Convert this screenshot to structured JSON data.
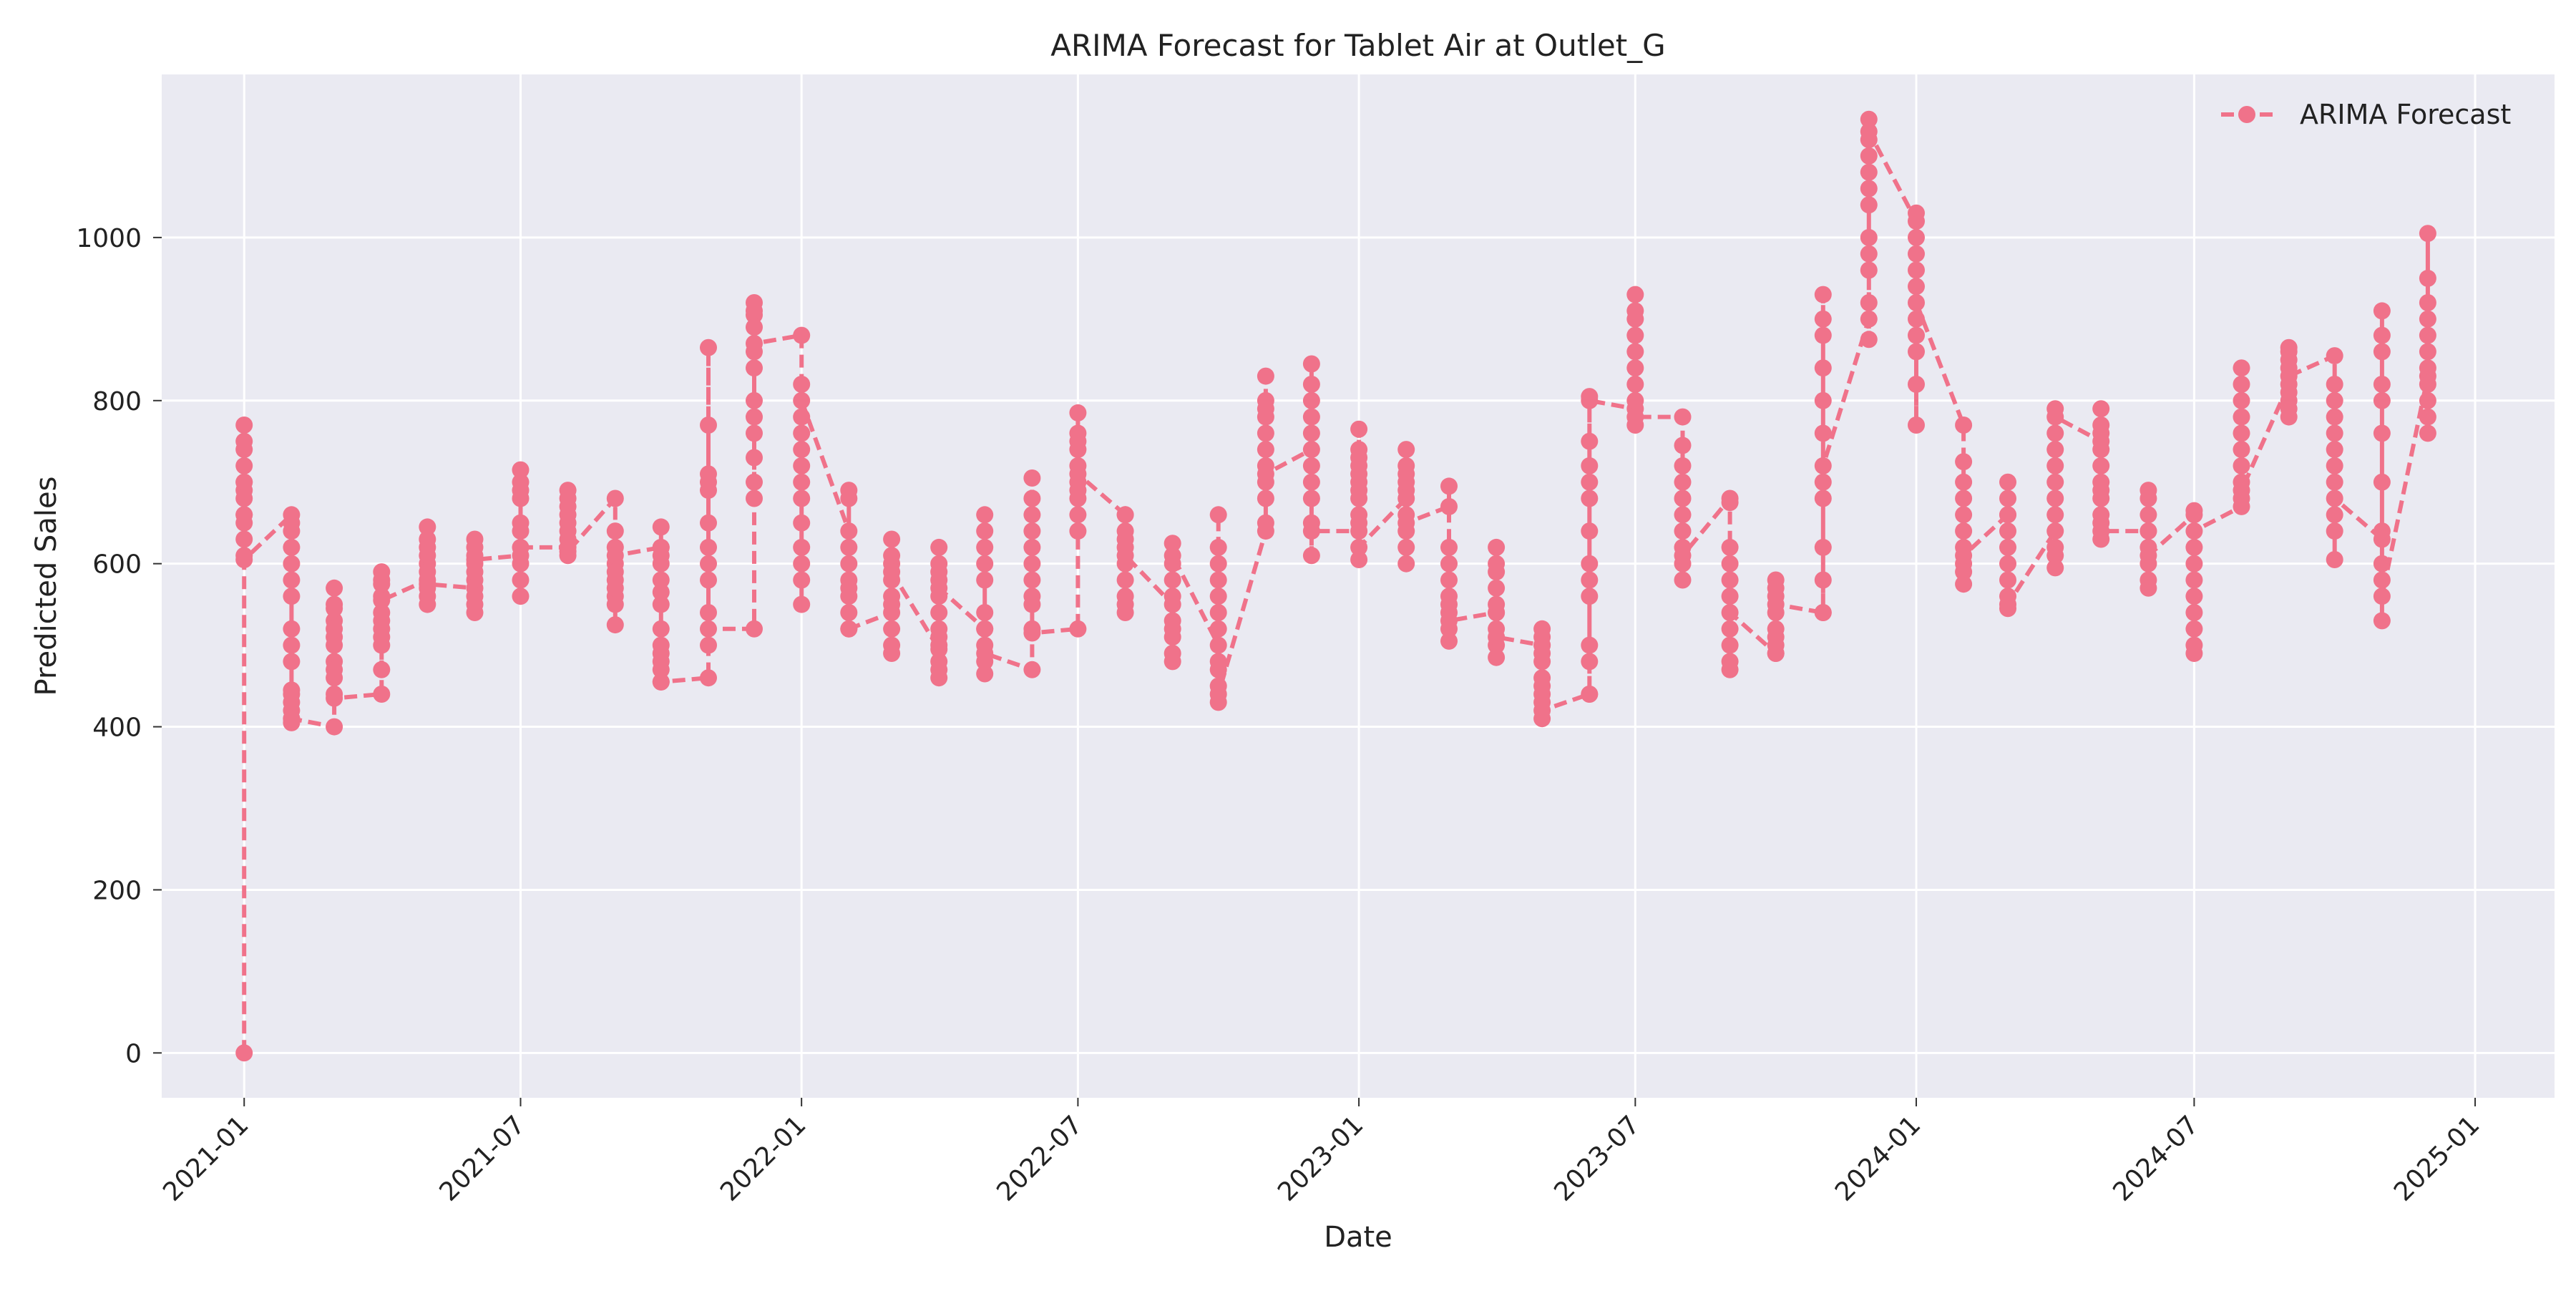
{
  "chart_data": {
    "type": "line",
    "title": "ARIMA Forecast for Tablet Air at Outlet_G",
    "xlabel": "Date",
    "ylabel": "Predicted Sales",
    "x_tick_labels": [
      "2021-01",
      "2021-07",
      "2022-01",
      "2022-07",
      "2023-01",
      "2023-07",
      "2024-01",
      "2024-07",
      "2025-01"
    ],
    "y_ticks": [
      0,
      200,
      400,
      600,
      800,
      1000
    ],
    "xlim": [
      "2020-11-08",
      "2025-02-22"
    ],
    "ylim": [
      -55,
      1200
    ],
    "grid": true,
    "legend_position": "top-right",
    "series": [
      {
        "name": "ARIMA Forecast",
        "color": "#f0728a",
        "marker": "circle",
        "line_style": "dashed",
        "points": [
          {
            "date": "2021-01-01",
            "y": [
              0,
              660,
              770,
              610,
              750,
              700,
              680,
              630,
              740,
              690,
              720,
              660,
              700,
              650,
              605
            ]
          },
          {
            "date": "2021-02-01",
            "y": [
              660,
              405,
              500,
              650,
              420,
              560,
              640,
              480,
              430,
              600,
              520,
              410,
              620,
              445,
              580,
              440,
              410
            ]
          },
          {
            "date": "2021-03-01",
            "y": [
              400,
              570,
              460,
              530,
              440,
              510,
              550,
              480,
              500,
              470,
              545,
              520,
              435
            ]
          },
          {
            "date": "2021-04-01",
            "y": [
              440,
              580,
              470,
              560,
              590,
              500,
              540,
              520,
              575,
              530,
              510,
              555
            ]
          },
          {
            "date": "2021-05-01",
            "y": [
              580,
              550,
              645,
              600,
              620,
              570,
              590,
              610,
              630,
              560,
              575
            ]
          },
          {
            "date": "2021-06-01",
            "y": [
              570,
              540,
              630,
              600,
              610,
              580,
              560,
              620,
              590,
              550,
              605
            ]
          },
          {
            "date": "2021-07-01",
            "y": [
              610,
              560,
              715,
              650,
              700,
              680,
              600,
              690,
              640,
              580,
              620
            ]
          },
          {
            "date": "2021-08-01",
            "y": [
              620,
              690,
              610,
              680,
              650,
              670,
              640,
              660,
              630,
              615
            ]
          },
          {
            "date": "2021-09-01",
            "y": [
              680,
              525,
              640,
              560,
              620,
              600,
              590,
              580,
              550,
              570,
              610
            ]
          },
          {
            "date": "2021-10-01",
            "y": [
              620,
              455,
              645,
              500,
              600,
              470,
              550,
              580,
              520,
              490,
              610,
              480,
              565,
              620,
              455
            ]
          },
          {
            "date": "2021-11-01",
            "y": [
              460,
              500,
              865,
              540,
              770,
              600,
              700,
              650,
              620,
              690,
              580,
              710,
              520
            ]
          },
          {
            "date": "2021-12-01",
            "y": [
              520,
              905,
              680,
              920,
              800,
              860,
              730,
              890,
              760,
              700,
              840,
              910,
              780,
              870
            ]
          },
          {
            "date": "2022-01-01",
            "y": [
              880,
              550,
              820,
              600,
              780,
              700,
              760,
              650,
              720,
              680,
              740,
              580,
              620,
              800
            ]
          },
          {
            "date": "2022-02-01",
            "y": [
              640,
              690,
              520,
              600,
              560,
              680,
              540,
              620,
              580,
              570,
              520
            ]
          },
          {
            "date": "2022-03-01",
            "y": [
              540,
              630,
              490,
              600,
              520,
              580,
              560,
              610,
              550,
              500,
              590
            ]
          },
          {
            "date": "2022-04-01",
            "y": [
              495,
              620,
              460,
              600,
              500,
              580,
              540,
              560,
              480,
              520,
              590,
              510,
              470,
              570
            ]
          },
          {
            "date": "2022-05-01",
            "y": [
              520,
              660,
              465,
              600,
              500,
              640,
              540,
              580,
              520,
              480,
              620,
              490
            ]
          },
          {
            "date": "2022-06-01",
            "y": [
              470,
              705,
              520,
              660,
              600,
              640,
              560,
              620,
              580,
              550,
              680,
              515
            ]
          },
          {
            "date": "2022-07-01",
            "y": [
              520,
              785,
              640,
              760,
              700,
              740,
              680,
              720,
              660,
              750,
              690,
              710
            ]
          },
          {
            "date": "2022-08-01",
            "y": [
              660,
              660,
              540,
              640,
              600,
              620,
              580,
              560,
              630,
              550,
              610
            ]
          },
          {
            "date": "2022-09-01",
            "y": [
              550,
              625,
              480,
              600,
              530,
              580,
              520,
              510,
              560,
              490,
              610
            ]
          },
          {
            "date": "2022-10-01",
            "y": [
              500,
              660,
              430,
              620,
              480,
              560,
              520,
              600,
              450,
              540,
              470,
              580,
              440
            ]
          },
          {
            "date": "2022-11-01",
            "y": [
              640,
              830,
              650,
              800,
              720,
              780,
              700,
              760,
              740,
              680,
              790,
              710
            ]
          },
          {
            "date": "2022-12-01",
            "y": [
              740,
              845,
              610,
              800,
              700,
              780,
              650,
              760,
              720,
              820,
              680,
              640
            ]
          },
          {
            "date": "2023-01-01",
            "y": [
              640,
              765,
              605,
              720,
              660,
              700,
              680,
              740,
              650,
              710,
              690,
              730,
              620
            ]
          },
          {
            "date": "2023-02-01",
            "y": [
              680,
              740,
              600,
              710,
              640,
              690,
              660,
              720,
              620,
              700,
              650
            ]
          },
          {
            "date": "2023-03-01",
            "y": [
              670,
              695,
              505,
              620,
              540,
              580,
              560,
              600,
              520,
              550,
              530
            ]
          },
          {
            "date": "2023-04-01",
            "y": [
              540,
              620,
              485,
              600,
              520,
              570,
              540,
              500,
              590,
              550,
              510
            ]
          },
          {
            "date": "2023-05-01",
            "y": [
              500,
              520,
              410,
              500,
              440,
              480,
              460,
              430,
              510,
              450,
              490,
              420
            ]
          },
          {
            "date": "2023-06-01",
            "y": [
              440,
              805,
              440,
              750,
              560,
              700,
              640,
              600,
              720,
              480,
              680,
              500,
              580,
              800
            ]
          },
          {
            "date": "2023-07-01",
            "y": [
              790,
              930,
              770,
              900,
              820,
              880,
              860,
              840,
              800,
              910,
              780
            ]
          },
          {
            "date": "2023-08-01",
            "y": [
              780,
              745,
              580,
              700,
              620,
              680,
              640,
              720,
              600,
              660,
              610
            ]
          },
          {
            "date": "2023-09-01",
            "y": [
              680,
              675,
              470,
              620,
              520,
              580,
              500,
              560,
              480,
              600,
              540
            ]
          },
          {
            "date": "2023-10-01",
            "y": [
              490,
              580,
              490,
              560,
              520,
              540,
              510,
              570,
              500,
              550
            ]
          },
          {
            "date": "2023-11-01",
            "y": [
              540,
              930,
              540,
              880,
              620,
              840,
              700,
              800,
              580,
              760,
              680,
              900,
              720
            ]
          },
          {
            "date": "2023-12-01",
            "y": [
              900,
              1145,
              875,
              1100,
              960,
              1080,
              1000,
              1120,
              980,
              1060,
              920,
              1040,
              1130
            ]
          },
          {
            "date": "2024-01-01",
            "y": [
              1020,
              770,
              1030,
              880,
              960,
              820,
              940,
              900,
              1000,
              860,
              980,
              920
            ]
          },
          {
            "date": "2024-02-01",
            "y": [
              770,
              725,
              575,
              680,
              620,
              660,
              600,
              640,
              590,
              700,
              610
            ]
          },
          {
            "date": "2024-03-01",
            "y": [
              660,
              700,
              545,
              660,
              580,
              640,
              560,
              620,
              600,
              680,
              550
            ]
          },
          {
            "date": "2024-04-01",
            "y": [
              640,
              790,
              595,
              760,
              660,
              720,
              620,
              740,
              680,
              700,
              610,
              780
            ]
          },
          {
            "date": "2024-05-01",
            "y": [
              750,
              790,
              630,
              760,
              680,
              740,
              700,
              720,
              660,
              770,
              650,
              690,
              640
            ]
          },
          {
            "date": "2024-06-01",
            "y": [
              640,
              690,
              570,
              660,
              600,
              640,
              620,
              580,
              680,
              610
            ]
          },
          {
            "date": "2024-07-01",
            "y": [
              660,
              665,
              490,
              620,
              540,
              580,
              520,
              600,
              560,
              500,
              640
            ]
          },
          {
            "date": "2024-08-01",
            "y": [
              670,
              840,
              680,
              800,
              720,
              780,
              700,
              760,
              740,
              820,
              690
            ]
          },
          {
            "date": "2024-09-01",
            "y": [
              820,
              865,
              780,
              850,
              800,
              840,
              810,
              860,
              790,
              830
            ]
          },
          {
            "date": "2024-10-01",
            "y": [
              855,
              605,
              820,
              660,
              780,
              700,
              760,
              640,
              800,
              720,
              740,
              680
            ]
          },
          {
            "date": "2024-11-01",
            "y": [
              630,
              910,
              530,
              880,
              640,
              820,
              700,
              760,
              580,
              860,
              600,
              800,
              560
            ]
          },
          {
            "date": "2024-12-01",
            "y": [
              830,
              1005,
              760,
              950,
              840,
              920,
              800,
              880,
              900,
              780,
              860,
              820
            ]
          }
        ]
      }
    ]
  }
}
